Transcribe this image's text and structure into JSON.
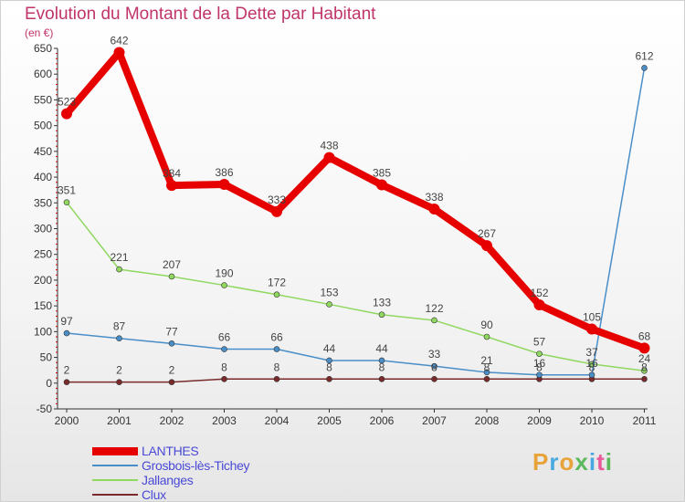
{
  "title": "Evolution du Montant de la Dette par Habitant",
  "subtitle": "(en €)",
  "logo": {
    "text": "Proxiti",
    "letters": [
      {
        "ch": "P",
        "color": "#e8a23a"
      },
      {
        "ch": "r",
        "color": "#4aa8e0"
      },
      {
        "ch": "o",
        "color": "#e8a23a"
      },
      {
        "ch": "x",
        "color": "#5cb85c"
      },
      {
        "ch": "i",
        "color": "#4aa8e0"
      },
      {
        "ch": "t",
        "color": "#e85a9a"
      },
      {
        "ch": "i",
        "color": "#5cb85c"
      }
    ]
  },
  "chart_data": {
    "type": "line",
    "title": "Evolution du Montant de la Dette par Habitant",
    "subtitle": "(en €)",
    "x": [
      "2000",
      "2001",
      "2002",
      "2003",
      "2004",
      "2005",
      "2006",
      "2007",
      "2008",
      "2009",
      "2010",
      "2011"
    ],
    "ylim": [
      -50,
      650
    ],
    "yticks": [
      "-50",
      "0",
      "50",
      "100",
      "150",
      "200",
      "250",
      "300",
      "350",
      "400",
      "450",
      "500",
      "550",
      "600",
      "650"
    ],
    "grid": false,
    "legend": "bottom-left",
    "series": [
      {
        "name": "Clux",
        "color": "#7a2a2a",
        "width": 1.5,
        "marker": 3,
        "values": [
          2,
          2,
          2,
          8,
          8,
          8,
          8,
          8,
          8,
          8,
          8,
          8
        ],
        "labels": [
          "2",
          "2",
          "2",
          "8",
          "8",
          "8",
          "8",
          "8",
          "8",
          "8",
          "8",
          "8"
        ]
      },
      {
        "name": "Jallanges",
        "color": "#90d860",
        "width": 1.5,
        "marker": 3,
        "values": [
          351,
          221,
          207,
          190,
          172,
          153,
          133,
          122,
          90,
          57,
          37,
          24
        ],
        "labels": [
          "351",
          "221",
          "207",
          "190",
          "172",
          "153",
          "133",
          "122",
          "90",
          "57",
          "37",
          "24"
        ]
      },
      {
        "name": "Grosbois-lès-Tichey",
        "color": "#4a8ec8",
        "width": 1.5,
        "marker": 3,
        "values": [
          97,
          87,
          77,
          66,
          66,
          44,
          44,
          33,
          21,
          16,
          16,
          612
        ],
        "labels": [
          "97",
          "87",
          "77",
          "66",
          "66",
          "44",
          "44",
          "33",
          "21",
          "16",
          "16",
          "612"
        ]
      },
      {
        "name": "LANTHES",
        "color": "#e60000",
        "width": 8,
        "marker": 6,
        "values": [
          523,
          642,
          384,
          386,
          333,
          438,
          385,
          338,
          267,
          152,
          105,
          68
        ],
        "labels": [
          "523",
          "642",
          "384",
          "386",
          "333",
          "438",
          "385",
          "338",
          "267",
          "152",
          "105",
          "68"
        ]
      }
    ],
    "legend_order": [
      "LANTHES",
      "Grosbois-lès-Tichey",
      "Jallanges",
      "Clux"
    ]
  }
}
